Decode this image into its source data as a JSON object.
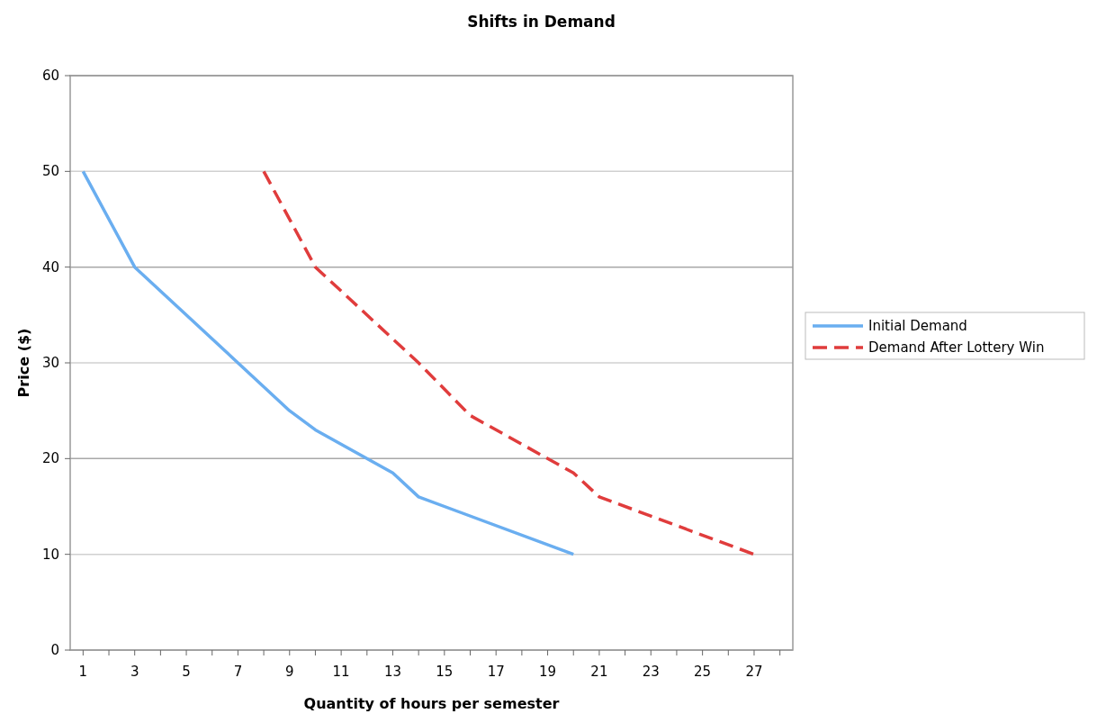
{
  "chart_data": {
    "type": "line",
    "title": "Shifts in Demand",
    "xlabel": "Quantity of hours per semester",
    "ylabel": "Price ($)",
    "xlim": [
      0.5,
      28.5
    ],
    "xticks": [
      1,
      {
        "value": 2,
        "label": null
      },
      3,
      {
        "value": 4,
        "label": null
      },
      5,
      {
        "value": 6,
        "label": null
      },
      7,
      {
        "value": 8,
        "label": null
      },
      9,
      {
        "value": 10,
        "label": null
      },
      11,
      {
        "value": 12,
        "label": null
      },
      13,
      {
        "value": 14,
        "label": null
      },
      15,
      {
        "value": 16,
        "label": null
      },
      17,
      {
        "value": 18,
        "label": null
      },
      19,
      {
        "value": 20,
        "label": null
      },
      21,
      {
        "value": 22,
        "label": null
      },
      23,
      {
        "value": 24,
        "label": null
      },
      25,
      {
        "value": 26,
        "label": null
      },
      27,
      {
        "value": 28,
        "label": null
      }
    ],
    "ylim": [
      0,
      60
    ],
    "yticks": [
      0,
      10,
      20,
      30,
      40,
      50,
      60
    ],
    "grid": "y",
    "legend": "right",
    "marker": "none",
    "series": [
      {
        "name": "Initial Demand",
        "color": "#6aaef0",
        "line_style": "solid",
        "x": [
          1,
          3,
          9,
          10,
          13,
          14,
          20
        ],
        "values": [
          50,
          40,
          25,
          23,
          18.5,
          16,
          10
        ]
      },
      {
        "name": "Demand After Lottery Win",
        "color": "#e03c3c",
        "line_style": "dashed",
        "x": [
          8,
          10,
          14,
          16,
          20,
          21,
          27
        ],
        "values": [
          50,
          40,
          30,
          24.5,
          18.5,
          16,
          10
        ]
      }
    ]
  }
}
